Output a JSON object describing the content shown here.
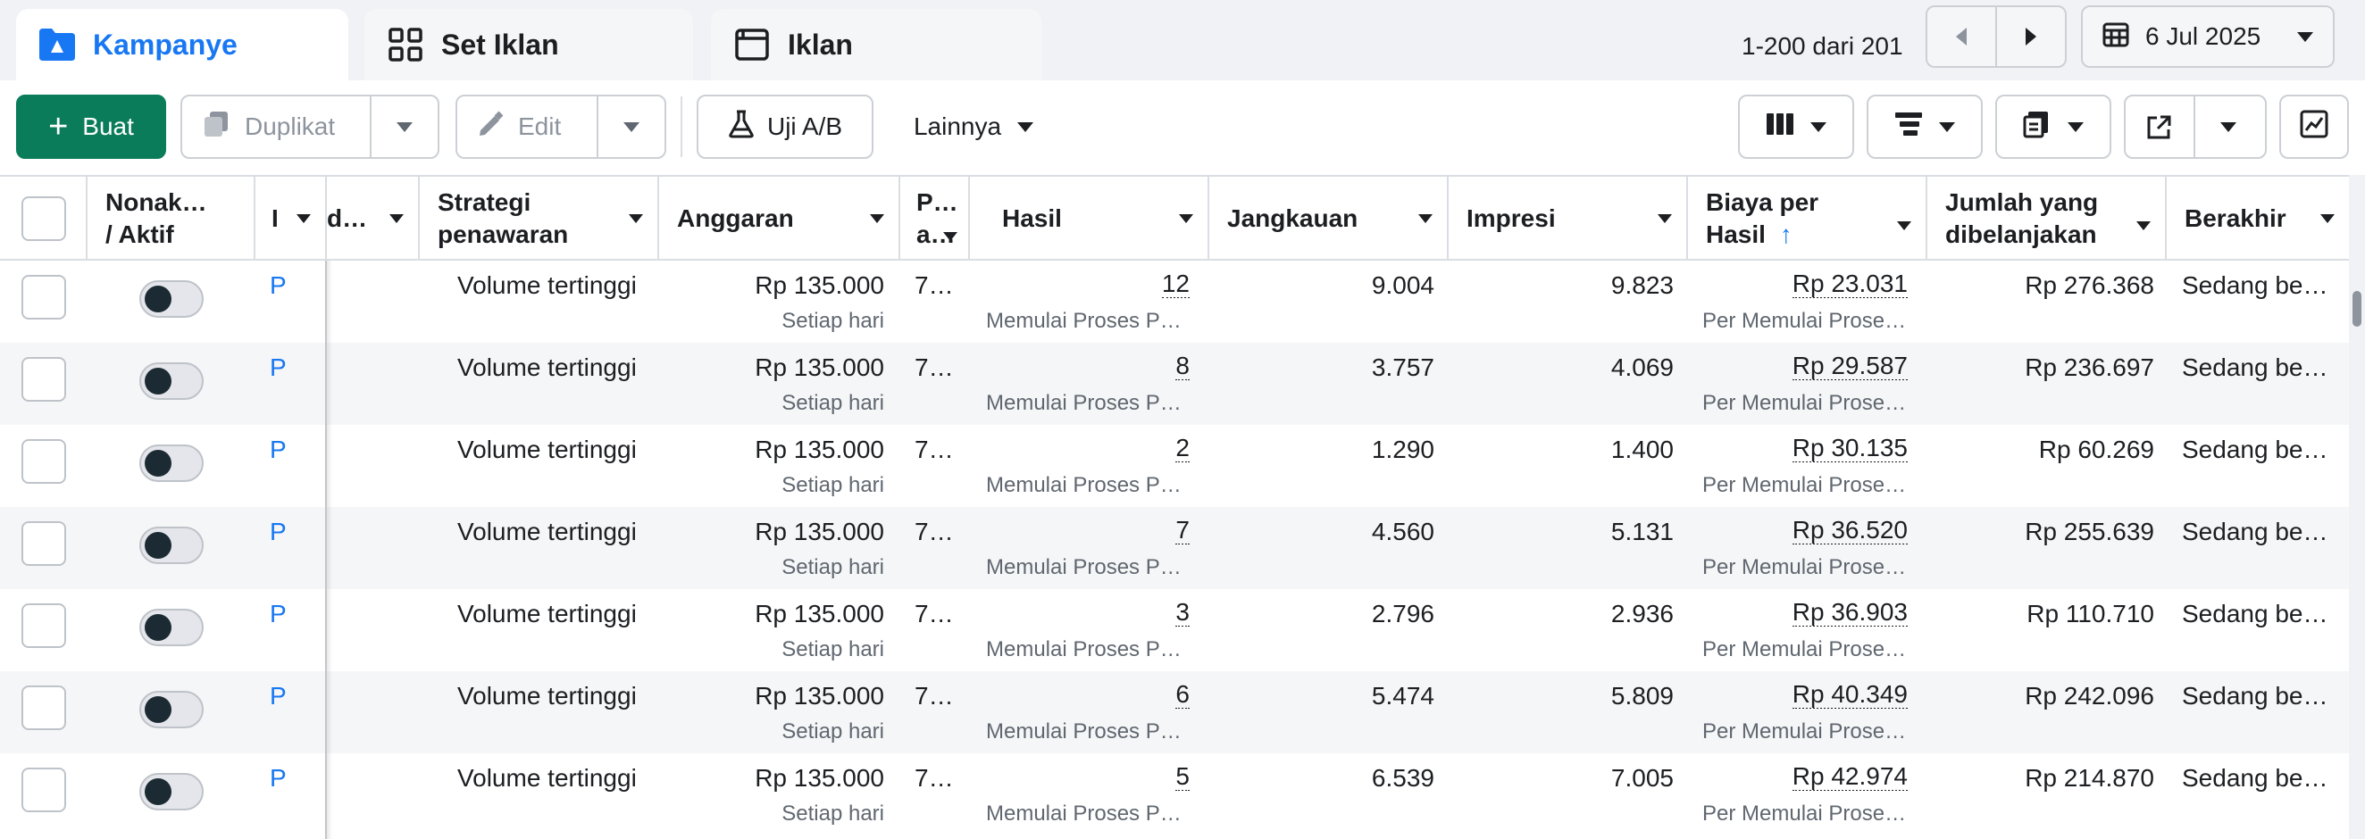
{
  "tabs": [
    {
      "label": "Kampanye",
      "icon": "folder-icon",
      "active": true
    },
    {
      "label": "Set Iklan",
      "icon": "grid-icon",
      "active": false
    },
    {
      "label": "Iklan",
      "icon": "ad-window-icon",
      "active": false
    }
  ],
  "pagination": {
    "text": "1-200 dari 201"
  },
  "date": {
    "label": "6 Jul 2025"
  },
  "toolbar": {
    "create_label": "Buat",
    "duplicate_label": "Duplikat",
    "edit_label": "Edit",
    "abtest_label": "Uji A/B",
    "more_label": "Lainnya"
  },
  "columns": {
    "toggle": "Nonak… / Aktif",
    "name": "I",
    "delivery": "d…",
    "bid": "Strategi penawaran",
    "budget": "Anggaran",
    "attribution": "P… a…",
    "results": "Hasil",
    "reach": "Jangkauan",
    "impressions": "Impresi",
    "cpr": "Biaya per Hasil",
    "spent": "Jumlah yang dibelanjakan",
    "ends": "Berakhir"
  },
  "rows": [
    {
      "name": "P",
      "bid": "Volume tertinggi",
      "budget": "Rp 135.000",
      "budget_sub": "Setiap hari",
      "attr": "7…",
      "results": "12",
      "results_sub": "Memulai Proses P…",
      "reach": "9.004",
      "impressions": "9.823",
      "cpr": "Rp 23.031",
      "cpr_sub": "Per Memulai Prose…",
      "spent": "Rp 276.368",
      "ends": "Sedang be…"
    },
    {
      "name": "P",
      "bid": "Volume tertinggi",
      "budget": "Rp 135.000",
      "budget_sub": "Setiap hari",
      "attr": "7…",
      "results": "8",
      "results_sub": "Memulai Proses P…",
      "reach": "3.757",
      "impressions": "4.069",
      "cpr": "Rp 29.587",
      "cpr_sub": "Per Memulai Prose…",
      "spent": "Rp 236.697",
      "ends": "Sedang be…"
    },
    {
      "name": "P",
      "bid": "Volume tertinggi",
      "budget": "Rp 135.000",
      "budget_sub": "Setiap hari",
      "attr": "7…",
      "results": "2",
      "results_sub": "Memulai Proses P…",
      "reach": "1.290",
      "impressions": "1.400",
      "cpr": "Rp 30.135",
      "cpr_sub": "Per Memulai Prose…",
      "spent": "Rp 60.269",
      "ends": "Sedang be…"
    },
    {
      "name": "P",
      "bid": "Volume tertinggi",
      "budget": "Rp 135.000",
      "budget_sub": "Setiap hari",
      "attr": "7…",
      "results": "7",
      "results_sub": "Memulai Proses P…",
      "reach": "4.560",
      "impressions": "5.131",
      "cpr": "Rp 36.520",
      "cpr_sub": "Per Memulai Prose…",
      "spent": "Rp 255.639",
      "ends": "Sedang be…"
    },
    {
      "name": "P",
      "bid": "Volume tertinggi",
      "budget": "Rp 135.000",
      "budget_sub": "Setiap hari",
      "attr": "7…",
      "results": "3",
      "results_sub": "Memulai Proses P…",
      "reach": "2.796",
      "impressions": "2.936",
      "cpr": "Rp 36.903",
      "cpr_sub": "Per Memulai Prose…",
      "spent": "Rp 110.710",
      "ends": "Sedang be…"
    },
    {
      "name": "P",
      "bid": "Volume tertinggi",
      "budget": "Rp 135.000",
      "budget_sub": "Setiap hari",
      "attr": "7…",
      "results": "6",
      "results_sub": "Memulai Proses P…",
      "reach": "5.474",
      "impressions": "5.809",
      "cpr": "Rp 40.349",
      "cpr_sub": "Per Memulai Prose…",
      "spent": "Rp 242.096",
      "ends": "Sedang be…"
    },
    {
      "name": "P",
      "bid": "Volume tertinggi",
      "budget": "Rp 135.000",
      "budget_sub": "Setiap hari",
      "attr": "7…",
      "results": "5",
      "results_sub": "Memulai Proses P…",
      "reach": "6.539",
      "impressions": "7.005",
      "cpr": "Rp 42.974",
      "cpr_sub": "Per Memulai Prose…",
      "spent": "Rp 214.870",
      "ends": "Sedang be…"
    }
  ],
  "colors": {
    "accent": "#1877f2",
    "create": "#0a7c5a",
    "border": "#ccd0d5"
  }
}
